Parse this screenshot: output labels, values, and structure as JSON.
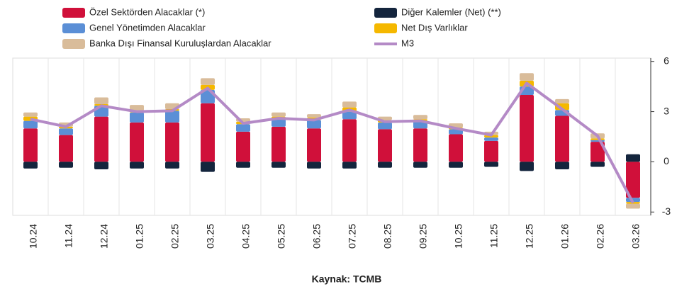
{
  "chart_data": {
    "type": "bar",
    "stacked": true,
    "source": "Kaynak: TCMB",
    "categories": [
      "10.24",
      "11.24",
      "12.24",
      "01.25",
      "02.25",
      "03.25",
      "04.25",
      "05.25",
      "06.25",
      "07.25",
      "08.25",
      "09.25",
      "10.25",
      "11.25",
      "12.25",
      "01.26",
      "02.26",
      "03.26"
    ],
    "series": [
      {
        "name": "Özel Sektörden Alacaklar (*)",
        "color": "#d0103a",
        "values": [
          2.0,
          1.6,
          2.7,
          2.35,
          2.35,
          3.5,
          1.8,
          2.1,
          2.0,
          2.55,
          1.95,
          2.0,
          1.65,
          1.25,
          4.0,
          2.75,
          1.2,
          -2.15
        ]
      },
      {
        "name": "Genel Yönetimden Alacaklar",
        "color": "#5b8fd6",
        "values": [
          0.45,
          0.4,
          0.65,
          0.6,
          0.7,
          0.8,
          0.45,
          0.45,
          0.5,
          0.45,
          0.4,
          0.45,
          0.3,
          0.2,
          0.5,
          0.35,
          0.1,
          -0.25
        ]
      },
      {
        "name": "Banka Dışı Finansal Kuruluşlardan Alacaklar",
        "color": "#d9bc9a",
        "values": [
          0.25,
          0.25,
          0.4,
          0.35,
          0.35,
          0.4,
          0.2,
          0.25,
          0.2,
          0.35,
          0.2,
          0.25,
          0.25,
          0.2,
          0.45,
          0.25,
          0.3,
          -0.3
        ]
      },
      {
        "name": "Diğer Kalemler (Net) (**)",
        "color": "#14253d",
        "values": [
          -0.4,
          -0.35,
          -0.45,
          -0.4,
          -0.4,
          -0.6,
          -0.35,
          -0.35,
          -0.4,
          -0.4,
          -0.35,
          -0.35,
          -0.35,
          -0.3,
          -0.55,
          -0.45,
          -0.3,
          0.45
        ]
      },
      {
        "name": "Net Dış Varlıklar",
        "color": "#f5b800",
        "values": [
          0.25,
          0.1,
          0.1,
          0.1,
          0.1,
          0.3,
          0.15,
          0.15,
          0.15,
          0.25,
          0.15,
          0.1,
          0.1,
          0.15,
          0.35,
          0.4,
          0.1,
          -0.1
        ]
      },
      {
        "name": "M3",
        "color": "#b48ac6",
        "type": "line",
        "values": [
          2.55,
          2.1,
          3.35,
          3.0,
          3.05,
          4.4,
          2.3,
          2.6,
          2.5,
          3.1,
          2.4,
          2.45,
          2.0,
          1.6,
          4.7,
          3.15,
          1.55,
          -2.45
        ]
      }
    ],
    "ylim": [
      -3.2,
      6.2
    ],
    "yticks": [
      6,
      3,
      0,
      -3
    ],
    "y_axis_side": "right"
  }
}
